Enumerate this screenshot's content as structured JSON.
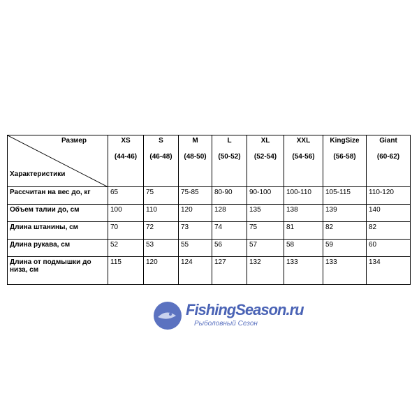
{
  "table": {
    "corner_top": "Размер",
    "corner_bottom": "Характеристики",
    "sizes": [
      {
        "label": "XS",
        "range": "(44-46)"
      },
      {
        "label": "S",
        "range": "(46-48)"
      },
      {
        "label": "M",
        "range": "(48-50)"
      },
      {
        "label": "L",
        "range": "(50-52)"
      },
      {
        "label": "XL",
        "range": "(52-54)"
      },
      {
        "label": "XXL",
        "range": "(54-56)"
      },
      {
        "label": "KingSize",
        "range": "(56-58)"
      },
      {
        "label": "Giant",
        "range": "(60-62)"
      }
    ],
    "rows": [
      {
        "label": "Рассчитан на вес до, кг",
        "values": [
          " 65",
          "75",
          "75-85",
          "80-90",
          "90-100",
          "100-110",
          "105-115",
          "110-120"
        ]
      },
      {
        "label": "Объем талии до, см",
        "values": [
          "100",
          "110",
          "120",
          "128",
          "135",
          "138",
          "139",
          "140"
        ]
      },
      {
        "label": "Длина штанины, см",
        "values": [
          "70",
          "72",
          "73",
          "74",
          "75",
          "81",
          "82",
          "82"
        ]
      },
      {
        "label": "Длина рукава, см",
        "values": [
          "52",
          "53",
          "55",
          "56",
          "57",
          "58",
          "59",
          "60"
        ]
      },
      {
        "label": "Длина от подмышки до низа, см",
        "values": [
          "115",
          "120",
          "124",
          "127",
          "132",
          "133",
          "133",
          "134"
        ]
      }
    ]
  },
  "watermark": {
    "title": "FishingSeason.ru",
    "subtitle": "Рыболовный Сезон",
    "color": "#4a63b5"
  }
}
